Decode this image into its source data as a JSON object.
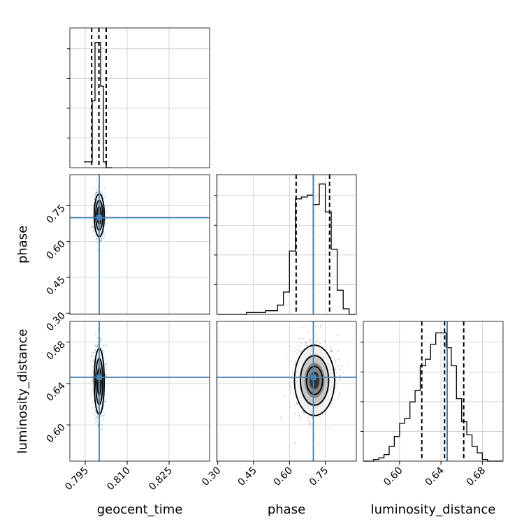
{
  "chart_data": {
    "type": "corner",
    "params": [
      "geocent_time",
      "phase",
      "luminosity_distance"
    ],
    "truths": {
      "geocent_time": 0.8,
      "phase": 0.7,
      "luminosity_distance": 0.646
    },
    "colors": {
      "truth": "#4682b4",
      "hist": "#000000",
      "grid": "#c8c8c8"
    },
    "grid": true,
    "ranges": {
      "geocent_time": [
        0.7895,
        0.8395
      ],
      "phase": [
        0.295,
        0.88
      ],
      "luminosity_distance": [
        0.565,
        0.7
      ]
    },
    "ticks": {
      "geocent_time": [
        0.795,
        0.81,
        0.825
      ],
      "phase": [
        0.3,
        0.45,
        0.6,
        0.75
      ],
      "luminosity_distance": [
        0.6,
        0.64,
        0.68
      ]
    },
    "tick_labels": {
      "geocent_time": [
        "0.795",
        "0.810",
        "0.825"
      ],
      "phase": [
        "0.30",
        "0.45",
        "0.60",
        "0.75"
      ],
      "luminosity_distance": [
        "0.60",
        "0.64",
        "0.68"
      ]
    },
    "marginals": [
      {
        "param": "geocent_time",
        "quantiles": [
          0.7973,
          0.7999,
          0.8025
        ],
        "bin_edges": [
          0.7945,
          0.7975,
          0.7985,
          0.7995,
          0.8005,
          0.8015,
          0.8025,
          0.8045
        ],
        "counts": [
          2,
          23,
          43,
          43,
          28,
          2,
          0
        ],
        "ymax": 48
      },
      {
        "param": "phase",
        "quantiles": [
          0.628,
          0.7,
          0.768
        ],
        "bin_edges": [
          0.3,
          0.42,
          0.5,
          0.55,
          0.575,
          0.6,
          0.625,
          0.65,
          0.675,
          0.7,
          0.725,
          0.75,
          0.775,
          0.8,
          0.825,
          0.85,
          0.88
        ],
        "counts": [
          0,
          1,
          2,
          5,
          12,
          34,
          62,
          63,
          64,
          59,
          70,
          55,
          35,
          13,
          3,
          0
        ],
        "ymax": 75
      },
      {
        "param": "luminosity_distance",
        "quantiles": [
          0.6215,
          0.6435,
          0.662
        ],
        "bin_edges": [
          0.565,
          0.575,
          0.58,
          0.585,
          0.59,
          0.595,
          0.6,
          0.605,
          0.61,
          0.615,
          0.62,
          0.625,
          0.63,
          0.635,
          0.64,
          0.645,
          0.65,
          0.655,
          0.66,
          0.665,
          0.67,
          0.675,
          0.68,
          0.685,
          0.69,
          0.7
        ],
        "counts": [
          0,
          1,
          2,
          4,
          9,
          15,
          23,
          26,
          36,
          43,
          58,
          62,
          71,
          78,
          78,
          69,
          58,
          38,
          24,
          16,
          9,
          5,
          1,
          0,
          0
        ],
        "ymax": 85
      }
    ],
    "joints": [
      {
        "x": "geocent_time",
        "y": "phase",
        "mean": [
          0.8,
          0.71
        ],
        "sd": [
          0.0009,
          0.045
        ]
      },
      {
        "x": "geocent_time",
        "y": "luminosity_distance",
        "mean": [
          0.8,
          0.642
        ],
        "sd": [
          0.0009,
          0.016
        ]
      },
      {
        "x": "phase",
        "y": "luminosity_distance",
        "mean": [
          0.705,
          0.643
        ],
        "sd": [
          0.042,
          0.017
        ]
      }
    ]
  }
}
